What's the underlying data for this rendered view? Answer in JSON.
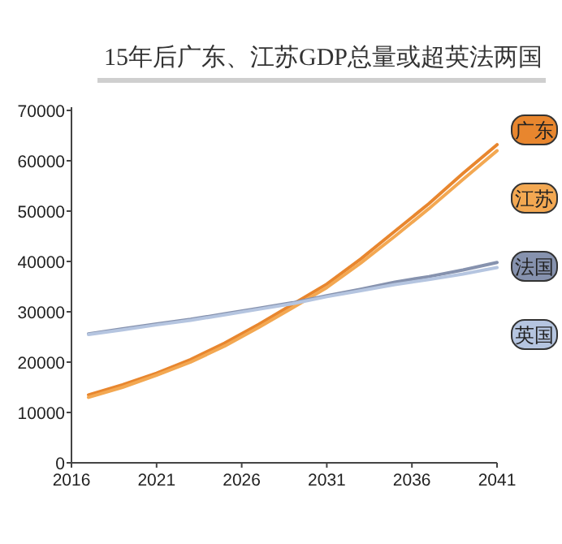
{
  "chart_data": {
    "type": "line",
    "title": "15年后广东、江苏GDP总量或超英法两国",
    "xlim": [
      2016,
      2041
    ],
    "xticks": [
      2016,
      2021,
      2026,
      2031,
      2036,
      2041
    ],
    "ylim": [
      0,
      70000
    ],
    "yticks": [
      0,
      10000,
      20000,
      30000,
      40000,
      50000,
      60000,
      70000
    ],
    "legend": "right",
    "grid": false,
    "marker": "none",
    "line_style": "solid",
    "x": [
      2017,
      2019,
      2021,
      2023,
      2025,
      2027,
      2029,
      2031,
      2033,
      2035,
      2037,
      2039,
      2041
    ],
    "series": [
      {
        "name": "广东",
        "color": "#e8862e",
        "values": [
          13500,
          15500,
          17800,
          20500,
          23800,
          27500,
          31500,
          35500,
          40500,
          46000,
          51500,
          57500,
          63200
        ]
      },
      {
        "name": "江苏",
        "color": "#f3a852",
        "values": [
          13000,
          15000,
          17400,
          20000,
          23200,
          26900,
          30800,
          34800,
          39700,
          45000,
          50500,
          56300,
          62000
        ]
      },
      {
        "name": "法国",
        "color": "#8692ae",
        "values": [
          25600,
          26600,
          27600,
          28500,
          29600,
          30700,
          31800,
          33200,
          34500,
          35900,
          37000,
          38300,
          39800
        ]
      },
      {
        "name": "英国",
        "color": "#b5c5e0",
        "values": [
          25500,
          26400,
          27400,
          28300,
          29400,
          30500,
          31600,
          33000,
          34200,
          35400,
          36400,
          37500,
          38800
        ]
      }
    ]
  }
}
